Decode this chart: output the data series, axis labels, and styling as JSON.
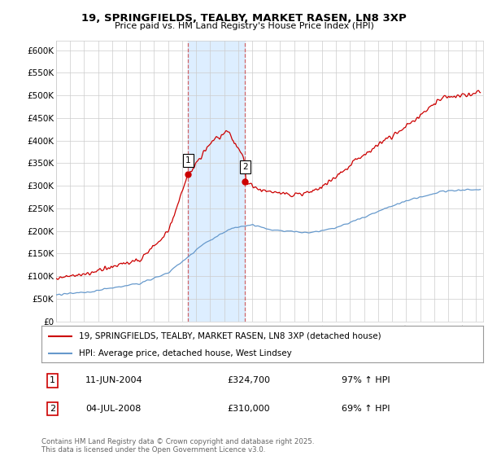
{
  "title1": "19, SPRINGFIELDS, TEALBY, MARKET RASEN, LN8 3XP",
  "title2": "Price paid vs. HM Land Registry's House Price Index (HPI)",
  "xlim_start": 1995.0,
  "xlim_end": 2025.5,
  "ylim": [
    0,
    620000
  ],
  "yticks": [
    0,
    50000,
    100000,
    150000,
    200000,
    250000,
    300000,
    350000,
    400000,
    450000,
    500000,
    550000,
    600000
  ],
  "ytick_labels": [
    "£0",
    "£50K",
    "£100K",
    "£150K",
    "£200K",
    "£250K",
    "£300K",
    "£350K",
    "£400K",
    "£450K",
    "£500K",
    "£550K",
    "£600K"
  ],
  "transaction1_date": 2004.44,
  "transaction1_price": 324700,
  "transaction2_date": 2008.5,
  "transaction2_price": 310000,
  "legend_line1": "19, SPRINGFIELDS, TEALBY, MARKET RASEN, LN8 3XP (detached house)",
  "legend_line2": "HPI: Average price, detached house, West Lindsey",
  "annotation1_date": "11-JUN-2004",
  "annotation1_price": "£324,700",
  "annotation1_hpi": "97% ↑ HPI",
  "annotation2_date": "04-JUL-2008",
  "annotation2_price": "£310,000",
  "annotation2_hpi": "69% ↑ HPI",
  "footer": "Contains HM Land Registry data © Crown copyright and database right 2025.\nThis data is licensed under the Open Government Licence v3.0.",
  "red_color": "#cc0000",
  "blue_color": "#6699cc",
  "shaded_color": "#ddeeff",
  "grid_color": "#cccccc",
  "background_color": "#ffffff"
}
